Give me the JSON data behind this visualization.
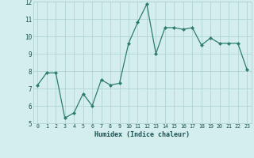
{
  "x": [
    0,
    1,
    2,
    3,
    4,
    5,
    6,
    7,
    8,
    9,
    10,
    11,
    12,
    13,
    14,
    15,
    16,
    17,
    18,
    19,
    20,
    21,
    22,
    23
  ],
  "y": [
    7.2,
    7.9,
    7.9,
    5.3,
    5.6,
    6.7,
    6.0,
    7.5,
    7.2,
    7.3,
    9.6,
    10.8,
    11.85,
    9.0,
    10.5,
    10.5,
    10.4,
    10.5,
    9.5,
    9.9,
    9.6,
    9.6,
    9.6,
    8.1
  ],
  "xlabel": "Humidex (Indice chaleur)",
  "ylim": [
    5,
    12
  ],
  "xlim": [
    -0.5,
    23.5
  ],
  "yticks": [
    5,
    6,
    7,
    8,
    9,
    10,
    11,
    12
  ],
  "xticks": [
    0,
    1,
    2,
    3,
    4,
    5,
    6,
    7,
    8,
    9,
    10,
    11,
    12,
    13,
    14,
    15,
    16,
    17,
    18,
    19,
    20,
    21,
    22,
    23
  ],
  "line_color": "#2d7d6d",
  "marker_color": "#2d7d6d",
  "bg_color": "#d4eeed",
  "grid_color": "#aacfce",
  "tick_color": "#1a5050",
  "xlabel_color": "#1a5050"
}
